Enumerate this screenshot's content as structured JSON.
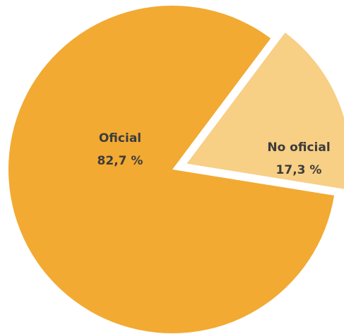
{
  "chart_data": {
    "type": "pie",
    "title": "",
    "slices": [
      {
        "label": "Oficial",
        "value": 82.7,
        "value_text": "82,7 %",
        "color": "#F2AA33"
      },
      {
        "label": "No oficial",
        "value": 17.3,
        "value_text": "17,3 %",
        "color": "#F7CF85"
      }
    ],
    "legend": "none",
    "labels": "inside-slices",
    "exploded": "No oficial"
  }
}
